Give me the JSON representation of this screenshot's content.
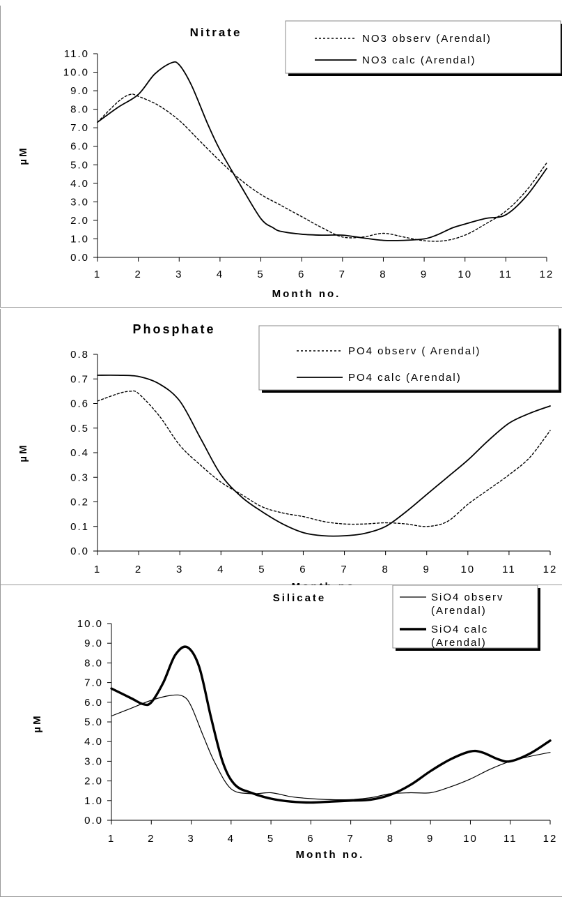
{
  "chart_data": [
    {
      "type": "line",
      "title": "Nitrate",
      "xlabel": "Month no.",
      "ylabel": "µM",
      "xlim": [
        1,
        12
      ],
      "ylim": [
        0,
        11
      ],
      "x_ticks": [
        "1",
        "2",
        "3",
        "4",
        "5",
        "6",
        "7",
        "8",
        "9",
        "10",
        "11",
        "12"
      ],
      "y_ticks": [
        "0.0",
        "1.0",
        "2.0",
        "3.0",
        "4.0",
        "5.0",
        "6.0",
        "7.0",
        "8.0",
        "9.0",
        "10.0",
        "11.0"
      ],
      "legend_position": "top-right",
      "series": [
        {
          "name": "NO3 observ (Arendal)",
          "style": "dotted",
          "color": "#000000",
          "x": [
            1,
            1.5,
            1.8,
            2,
            2.5,
            3,
            3.5,
            4,
            4.5,
            5,
            5.5,
            6,
            6.5,
            7,
            7.5,
            8,
            8.5,
            9,
            9.5,
            10,
            10.5,
            11,
            11.5,
            12
          ],
          "y": [
            7.3,
            8.4,
            8.8,
            8.7,
            8.2,
            7.4,
            6.3,
            5.2,
            4.2,
            3.4,
            2.8,
            2.2,
            1.6,
            1.1,
            1.1,
            1.3,
            1.1,
            0.9,
            0.9,
            1.2,
            1.8,
            2.5,
            3.6,
            5.1
          ]
        },
        {
          "name": "NO3 calc (Arendal)",
          "style": "solid",
          "color": "#000000",
          "x": [
            1,
            1.5,
            2,
            2.4,
            2.8,
            3,
            3.3,
            3.7,
            4,
            4.5,
            5,
            5.3,
            5.5,
            6,
            6.5,
            7,
            7.5,
            8,
            8.5,
            9,
            9.3,
            9.7,
            10,
            10.5,
            11,
            11.5,
            12
          ],
          "y": [
            7.3,
            8.1,
            8.8,
            9.9,
            10.5,
            10.4,
            9.3,
            7.2,
            5.8,
            3.9,
            2.1,
            1.6,
            1.4,
            1.25,
            1.2,
            1.2,
            1.05,
            0.92,
            0.92,
            1.0,
            1.2,
            1.6,
            1.8,
            2.1,
            2.3,
            3.3,
            4.8
          ]
        }
      ]
    },
    {
      "type": "line",
      "title": "Phosphate",
      "xlabel": "Month no.",
      "ylabel": "µM",
      "xlim": [
        1,
        12
      ],
      "ylim": [
        0,
        0.8
      ],
      "x_ticks": [
        "1",
        "2",
        "3",
        "4",
        "5",
        "6",
        "7",
        "8",
        "9",
        "10",
        "11",
        "12"
      ],
      "y_ticks": [
        "0.0",
        "0.1",
        "0.2",
        "0.3",
        "0.4",
        "0.5",
        "0.6",
        "0.7",
        "0.8"
      ],
      "legend_position": "top-right",
      "series": [
        {
          "name": "PO4 observ ( Arendal)",
          "style": "dotted",
          "color": "#000000",
          "x": [
            1,
            1.5,
            1.8,
            2,
            2.5,
            3,
            3.5,
            4,
            4.5,
            5,
            5.5,
            6,
            6.5,
            7,
            7.5,
            8,
            8.5,
            9,
            9.5,
            10,
            10.5,
            11,
            11.5,
            12
          ],
          "y": [
            0.61,
            0.64,
            0.65,
            0.64,
            0.55,
            0.43,
            0.35,
            0.28,
            0.23,
            0.18,
            0.155,
            0.14,
            0.12,
            0.11,
            0.11,
            0.115,
            0.11,
            0.1,
            0.12,
            0.19,
            0.25,
            0.31,
            0.38,
            0.49
          ],
          "hidden_points": false
        },
        {
          "name": "PO4 calc (Arendal)",
          "style": "solid",
          "color": "#000000",
          "x": [
            1,
            1.5,
            2,
            2.5,
            3,
            3.5,
            4,
            4.5,
            5,
            5.5,
            6,
            6.5,
            7,
            7.5,
            8,
            8.5,
            9,
            9.5,
            10,
            10.5,
            11,
            11.5,
            12
          ],
          "y": [
            0.715,
            0.715,
            0.71,
            0.68,
            0.61,
            0.46,
            0.31,
            0.22,
            0.16,
            0.11,
            0.075,
            0.062,
            0.062,
            0.072,
            0.1,
            0.16,
            0.23,
            0.3,
            0.37,
            0.45,
            0.52,
            0.56,
            0.59
          ]
        }
      ]
    },
    {
      "type": "line",
      "title": "Silicate",
      "xlabel": "Month no.",
      "ylabel": "µM",
      "xlim": [
        1,
        12
      ],
      "ylim": [
        0,
        10
      ],
      "x_ticks": [
        "1",
        "2",
        "3",
        "4",
        "5",
        "6",
        "7",
        "8",
        "9",
        "10",
        "11",
        "12"
      ],
      "y_ticks": [
        "0.0",
        "1.0",
        "2.0",
        "3.0",
        "4.0",
        "5.0",
        "6.0",
        "7.0",
        "8.0",
        "9.0",
        "10.0"
      ],
      "legend_position": "top-right",
      "series": [
        {
          "name_lines": [
            "SiO4 observ",
            "(Arendal)"
          ],
          "style": "solid-thin",
          "color": "#000000",
          "x": [
            1,
            1.5,
            2,
            2.5,
            2.8,
            3,
            3.3,
            3.6,
            4,
            4.5,
            5,
            5.5,
            6,
            6.5,
            7,
            7.5,
            8,
            8.5,
            9,
            9.5,
            10,
            10.5,
            11,
            11.5,
            12
          ],
          "y": [
            5.3,
            5.7,
            6.1,
            6.35,
            6.3,
            5.8,
            4.3,
            2.9,
            1.6,
            1.35,
            1.4,
            1.2,
            1.1,
            1.05,
            1.05,
            1.15,
            1.35,
            1.4,
            1.4,
            1.7,
            2.1,
            2.6,
            3.0,
            3.25,
            3.45
          ]
        },
        {
          "name_lines": [
            "SiO4 calc",
            "(Arendal)"
          ],
          "style": "solid-thick",
          "color": "#000000",
          "x": [
            1,
            1.5,
            1.8,
            2,
            2.3,
            2.6,
            2.9,
            3.2,
            3.5,
            3.8,
            4.1,
            4.5,
            5,
            5.5,
            6,
            6.5,
            7,
            7.5,
            8,
            8.5,
            9,
            9.5,
            10,
            10.3,
            10.7,
            11,
            11.5,
            12
          ],
          "y": [
            6.7,
            6.2,
            5.9,
            6.0,
            7.0,
            8.4,
            8.8,
            7.8,
            5.2,
            2.9,
            1.8,
            1.4,
            1.1,
            0.95,
            0.9,
            0.95,
            1.0,
            1.05,
            1.3,
            1.8,
            2.5,
            3.1,
            3.5,
            3.45,
            3.1,
            3.0,
            3.4,
            4.05
          ]
        }
      ]
    }
  ]
}
